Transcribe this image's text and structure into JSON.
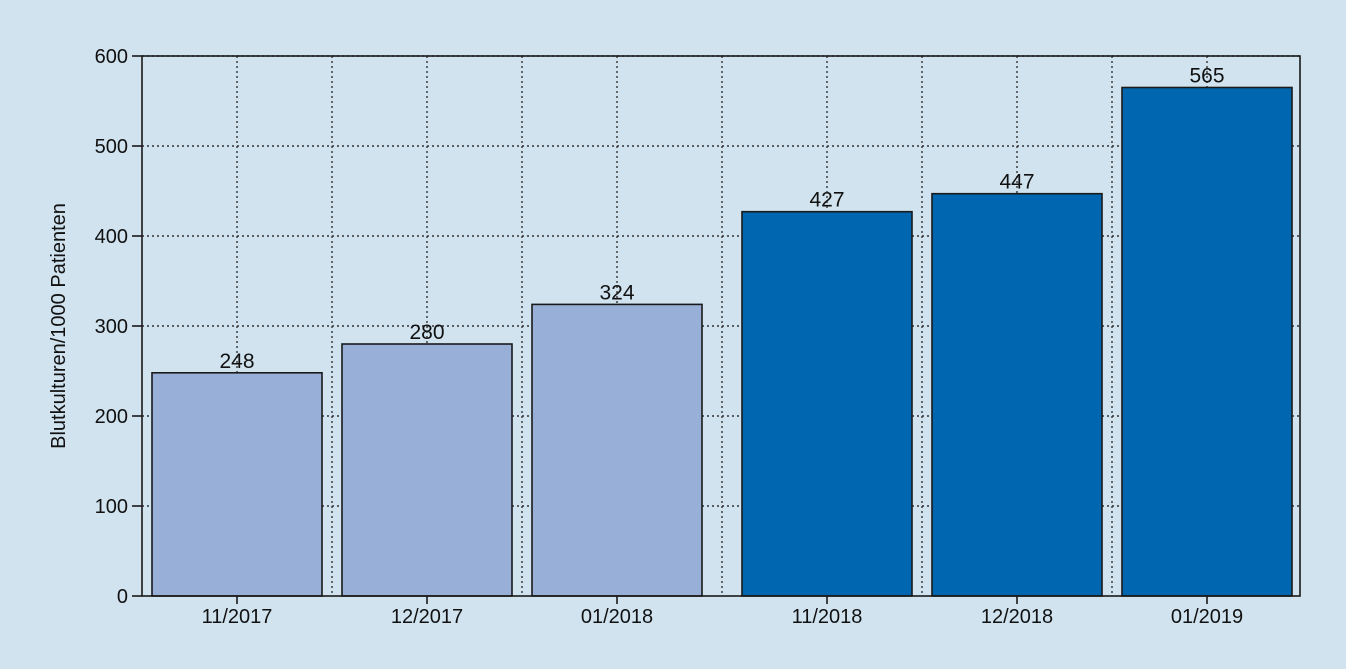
{
  "chart_data": {
    "type": "bar",
    "title": "",
    "xlabel": "",
    "ylabel": "Blutkulturen/1000 Patienten",
    "ylim": [
      0,
      600
    ],
    "yticks": [
      0,
      100,
      200,
      300,
      400,
      500,
      600
    ],
    "grid": true,
    "legend": "none",
    "categories": [
      "11/2017",
      "12/2017",
      "01/2018",
      "11/2018",
      "12/2018",
      "01/2019"
    ],
    "values": [
      248,
      280,
      324,
      427,
      447,
      565
    ],
    "bar_colors": [
      "#98b0d8",
      "#98b0d8",
      "#98b0d8",
      "#0066b0",
      "#0066b0",
      "#0066b0"
    ]
  },
  "colors": {
    "background": "#d0e3ef",
    "bar_stroke": "#1a1a1a",
    "axis": "#1a1a1a"
  }
}
